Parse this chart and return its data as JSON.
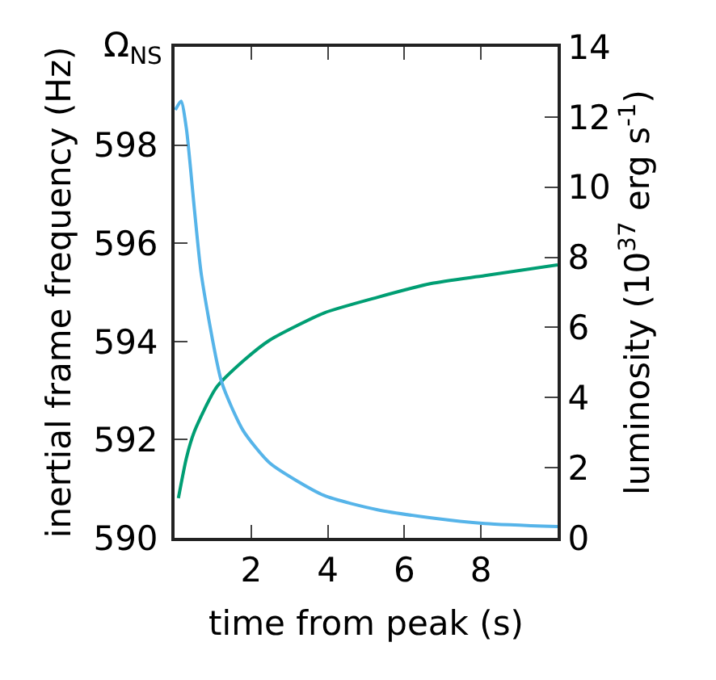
{
  "chart_data": {
    "type": "line",
    "xlabel": "time from peak (s)",
    "ylabel": "inertial frame frequency (Hz)",
    "y2label": "luminosity (10$^{37}$ erg s$^{-1}$)",
    "annotations": [
      "Ω$_{NS}$"
    ],
    "xlim": [
      0,
      10
    ],
    "xticks": [
      2,
      4,
      6,
      8
    ],
    "ylim": [
      590,
      600
    ],
    "yticks": [
      590,
      592,
      594,
      596,
      598
    ],
    "y2lim": [
      0,
      14
    ],
    "y2ticks": [
      0,
      2,
      4,
      6,
      8,
      10,
      12,
      14
    ],
    "marker": "none",
    "line_style": "solid",
    "series": [
      {
        "color": "#009e73",
        "x": [
          0.1,
          0.31,
          0.52,
          1.08,
          1.79,
          2.49,
          3.9,
          5.3,
          6.7,
          8.1,
          10
        ],
        "values": [
          590.81,
          591.63,
          592.17,
          593.05,
          593.6,
          594.03,
          594.58,
          594.9,
          595.18,
          595.34,
          595.56
        ]
      },
      {
        "color": "#56b4e9",
        "axis": "y2",
        "x": [
          0.02,
          0.17,
          0.31,
          0.52,
          0.7,
          1.23,
          1.79,
          2.49,
          3.9,
          5.3,
          6.7,
          8.1,
          10
        ],
        "values": [
          12.2,
          12.45,
          11.66,
          9.35,
          7.5,
          4.44,
          3.06,
          2.13,
          1.21,
          0.8,
          0.57,
          0.41,
          0.32
        ]
      }
    ]
  }
}
